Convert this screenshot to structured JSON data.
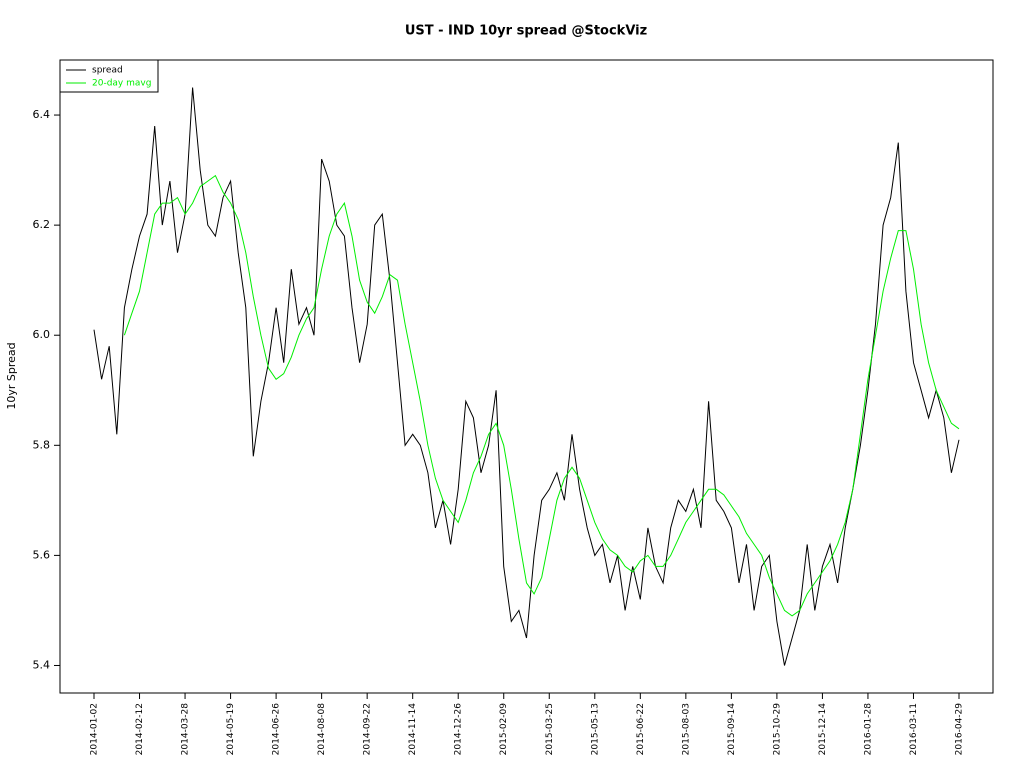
{
  "chart_data": {
    "type": "line",
    "title": "UST - IND 10yr spread @StockViz",
    "y_label": "10yr Spread",
    "legend": "topleft",
    "categories": [
      "2014-01-02",
      null,
      null,
      null,
      null,
      null,
      "2014-02-12",
      null,
      null,
      null,
      null,
      null,
      "2014-03-28",
      null,
      null,
      null,
      null,
      null,
      "2014-05-19",
      null,
      null,
      null,
      null,
      null,
      "2014-06-26",
      null,
      null,
      null,
      null,
      null,
      "2014-08-08",
      null,
      null,
      null,
      null,
      null,
      "2014-09-22",
      null,
      null,
      null,
      null,
      null,
      "2014-11-14",
      null,
      null,
      null,
      null,
      null,
      "2014-12-26",
      null,
      null,
      null,
      null,
      null,
      "2015-02-09",
      null,
      null,
      null,
      null,
      null,
      "2015-03-25",
      null,
      null,
      null,
      null,
      null,
      "2015-05-13",
      null,
      null,
      null,
      null,
      null,
      "2015-06-22",
      null,
      null,
      null,
      null,
      null,
      "2015-08-03",
      null,
      null,
      null,
      null,
      null,
      "2015-09-14",
      null,
      null,
      null,
      null,
      null,
      "2015-10-29",
      null,
      null,
      null,
      null,
      null,
      "2015-12-14",
      null,
      null,
      null,
      null,
      null,
      "2016-01-28",
      null,
      null,
      null,
      null,
      null,
      "2016-03-11",
      null,
      null,
      null,
      null,
      null,
      "2016-04-29"
    ],
    "series": [
      {
        "name": "spread",
        "color": "#000000",
        "values": [
          6.01,
          5.92,
          5.98,
          5.82,
          6.05,
          6.12,
          6.18,
          6.22,
          6.38,
          6.2,
          6.28,
          6.15,
          6.22,
          6.45,
          6.3,
          6.2,
          6.18,
          6.25,
          6.28,
          6.15,
          6.05,
          5.78,
          5.88,
          5.95,
          6.05,
          5.95,
          6.12,
          6.02,
          6.05,
          6.0,
          6.32,
          6.28,
          6.2,
          6.18,
          6.05,
          5.95,
          6.02,
          6.2,
          6.22,
          6.1,
          5.95,
          5.8,
          5.82,
          5.8,
          5.75,
          5.65,
          5.7,
          5.62,
          5.72,
          5.88,
          5.85,
          5.75,
          5.8,
          5.9,
          5.58,
          5.48,
          5.5,
          5.45,
          5.6,
          5.7,
          5.72,
          5.75,
          5.7,
          5.82,
          5.72,
          5.65,
          5.6,
          5.62,
          5.55,
          5.6,
          5.5,
          5.58,
          5.52,
          5.65,
          5.58,
          5.55,
          5.65,
          5.7,
          5.68,
          5.72,
          5.65,
          5.88,
          5.7,
          5.68,
          5.65,
          5.55,
          5.62,
          5.5,
          5.58,
          5.6,
          5.48,
          5.4,
          5.45,
          5.5,
          5.62,
          5.5,
          5.58,
          5.62,
          5.55,
          5.65,
          5.72,
          5.8,
          5.9,
          6.02,
          6.2,
          6.25,
          6.35,
          6.08,
          5.95,
          5.9,
          5.85,
          5.9,
          5.85,
          5.75,
          5.81
        ]
      },
      {
        "name": "20-day mavg",
        "color": "#00ee00",
        "values": [
          null,
          null,
          null,
          null,
          6.0,
          6.04,
          6.08,
          6.15,
          6.22,
          6.24,
          6.24,
          6.25,
          6.22,
          6.24,
          6.27,
          6.28,
          6.29,
          6.26,
          6.24,
          6.21,
          6.15,
          6.07,
          6.0,
          5.94,
          5.92,
          5.93,
          5.96,
          6.0,
          6.03,
          6.05,
          6.12,
          6.18,
          6.22,
          6.24,
          6.18,
          6.1,
          6.06,
          6.04,
          6.07,
          6.11,
          6.1,
          6.02,
          5.95,
          5.88,
          5.8,
          5.74,
          5.7,
          5.68,
          5.66,
          5.7,
          5.75,
          5.78,
          5.82,
          5.84,
          5.8,
          5.72,
          5.63,
          5.55,
          5.53,
          5.56,
          5.63,
          5.7,
          5.74,
          5.76,
          5.74,
          5.7,
          5.66,
          5.63,
          5.61,
          5.6,
          5.58,
          5.57,
          5.59,
          5.6,
          5.58,
          5.58,
          5.6,
          5.63,
          5.66,
          5.68,
          5.7,
          5.72,
          5.72,
          5.71,
          5.69,
          5.67,
          5.64,
          5.62,
          5.6,
          5.56,
          5.53,
          5.5,
          5.49,
          5.5,
          5.53,
          5.55,
          5.57,
          5.59,
          5.62,
          5.66,
          5.72,
          5.82,
          5.92,
          6.0,
          6.08,
          6.14,
          6.19,
          6.19,
          6.12,
          6.02,
          5.95,
          5.9,
          5.87,
          5.84,
          5.83
        ]
      }
    ],
    "ylim": [
      5.35,
      6.5
    ],
    "yticks": [
      5.4,
      5.6,
      5.8,
      {
        "value": 6,
        "label": "6.0"
      },
      6.2,
      6.4
    ]
  }
}
